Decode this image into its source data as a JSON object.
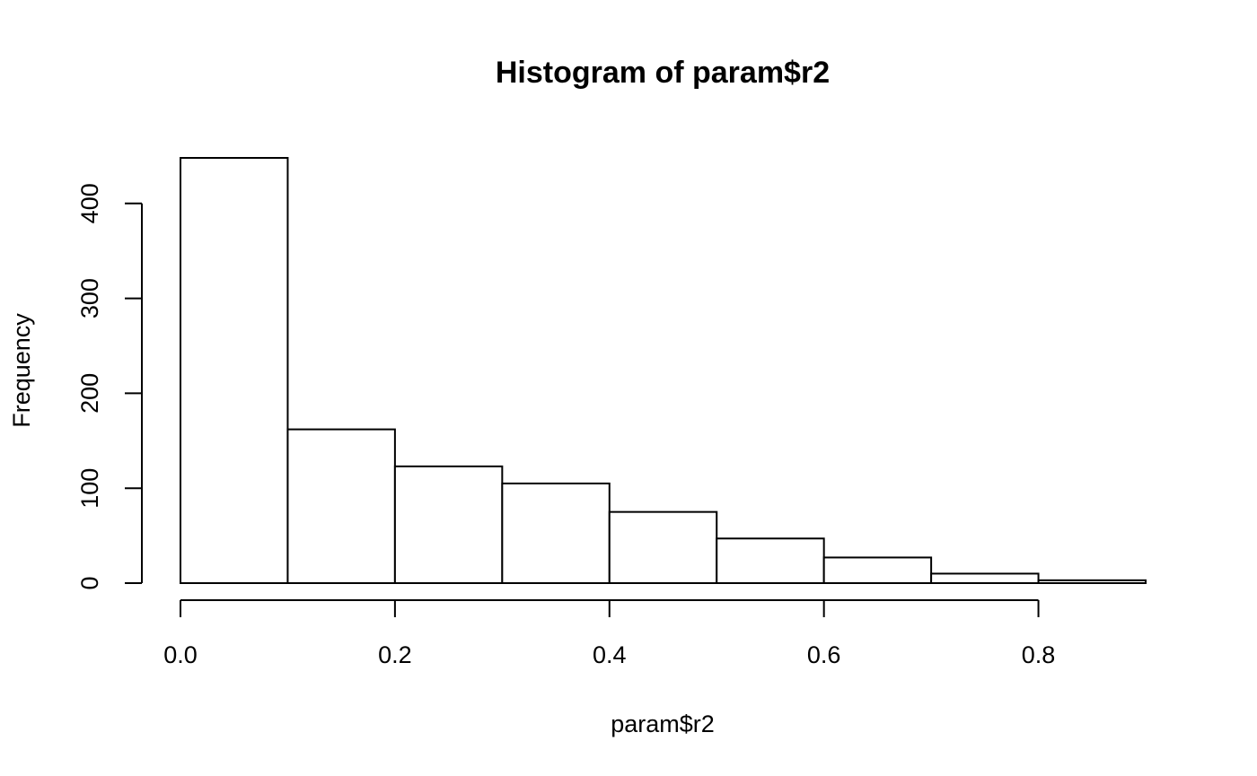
{
  "chart_data": {
    "type": "bar",
    "title": "Histogram of param$r2",
    "xlabel": "param$r2",
    "ylabel": "Frequency",
    "bins": [
      {
        "start": 0.0,
        "end": 0.1,
        "count": 448
      },
      {
        "start": 0.1,
        "end": 0.2,
        "count": 162
      },
      {
        "start": 0.2,
        "end": 0.3,
        "count": 123
      },
      {
        "start": 0.3,
        "end": 0.4,
        "count": 105
      },
      {
        "start": 0.4,
        "end": 0.5,
        "count": 75
      },
      {
        "start": 0.5,
        "end": 0.6,
        "count": 47
      },
      {
        "start": 0.6,
        "end": 0.7,
        "count": 27
      },
      {
        "start": 0.7,
        "end": 0.8,
        "count": 10
      },
      {
        "start": 0.8,
        "end": 0.9,
        "count": 3
      }
    ],
    "x_ticks": [
      0.0,
      0.2,
      0.4,
      0.6,
      0.8
    ],
    "x_tick_labels": [
      "0.0",
      "0.2",
      "0.4",
      "0.6",
      "0.8"
    ],
    "y_ticks": [
      0,
      100,
      200,
      300,
      400
    ],
    "y_tick_labels": [
      "0",
      "100",
      "200",
      "300",
      "400"
    ],
    "xlim": [
      0.0,
      0.9
    ],
    "ylim": [
      0,
      448
    ],
    "grid": false,
    "colors": {
      "bar_fill": "#ffffff",
      "bar_stroke": "#000000"
    }
  }
}
